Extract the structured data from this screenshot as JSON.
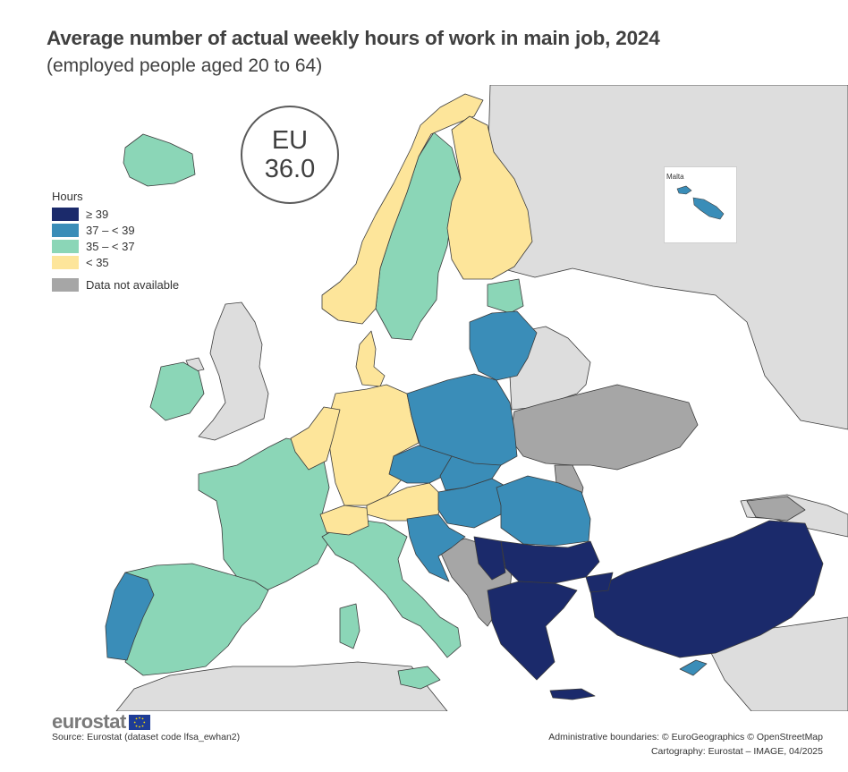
{
  "header": {
    "title": "Average number of actual weekly hours of work in main job, 2024",
    "subtitle": "(employed people aged 20 to 64)"
  },
  "eu_badge": {
    "line1": "EU",
    "line2": "36.0"
  },
  "legend": {
    "heading": "Hours",
    "items": [
      {
        "label": "≥ 39",
        "color": "#1b2a6b"
      },
      {
        "label": "37 – < 39",
        "color": "#3a8db8"
      },
      {
        "label": "35 – < 37",
        "color": "#8bd6b7"
      },
      {
        "label": "< 35",
        "color": "#fde59a"
      }
    ],
    "na": {
      "label": "Data not available",
      "color": "#a6a6a6"
    }
  },
  "colors": {
    "sea": "#ffffff",
    "non_eu": "#dddddd",
    "border": "#3c3c3c",
    "eu_flag": "#1e3c96"
  },
  "map_data": {
    "classes": {
      "ge39": [
        "Bulgaria",
        "Greece",
        "Türkiye",
        "North Macedonia"
      ],
      "37to39": [
        "Portugal",
        "Poland",
        "Czechia",
        "Slovakia",
        "Hungary",
        "Romania",
        "Croatia",
        "Slovenia",
        "Lithuania",
        "Latvia",
        "Cyprus",
        "Malta"
      ],
      "35to37": [
        "Iceland",
        "Ireland",
        "France",
        "Spain",
        "Italy",
        "Sweden",
        "Estonia"
      ],
      "lt35": [
        "Norway",
        "Finland",
        "Denmark",
        "Germany",
        "Netherlands",
        "Belgium",
        "Luxembourg",
        "Austria",
        "Switzerland"
      ],
      "na": [
        "Ukraine",
        "Moldova",
        "Bosnia and Herzegovina",
        "Serbia",
        "Montenegro",
        "Albania",
        "Kosovo",
        "Georgia"
      ]
    }
  },
  "inset": {
    "label": "Malta"
  },
  "footer": {
    "logo": "eurostat",
    "source": "Source: Eurostat (dataset code lfsa_ewhan2)",
    "credit_line1": "Administrative boundaries: © EuroGeographics © OpenStreetMap",
    "credit_line2": "Cartography: Eurostat – IMAGE, 04/2025"
  }
}
